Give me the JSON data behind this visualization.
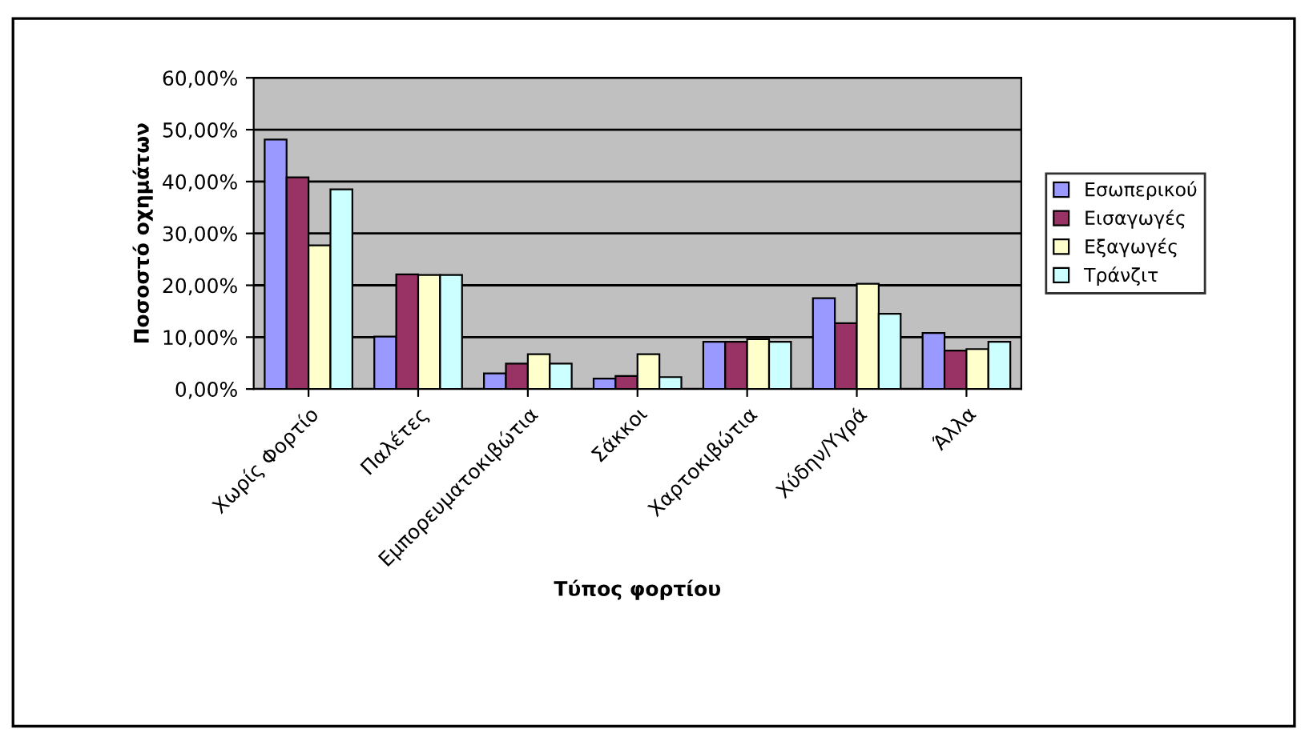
{
  "chart_data": {
    "type": "bar",
    "xlabel": "Τύπος φορτίου",
    "ylabel": "Ποσοστό οχημάτων",
    "categories": [
      "Χωρίς Φορτίο",
      "Παλέτες",
      "Εμπορευματοκιβώτια",
      "Σάκκοι",
      "Χαρτοκιβώτια",
      "Χύδην/Υγρά",
      "Άλλα"
    ],
    "series": [
      {
        "name": "Εσωπερικού",
        "color": "#9999ff",
        "values": [
          48.1,
          10.1,
          3.0,
          2.0,
          9.1,
          17.5,
          10.8
        ]
      },
      {
        "name": "Εισαγωγές",
        "color": "#993366",
        "values": [
          40.8,
          22.1,
          4.9,
          2.5,
          9.1,
          12.7,
          7.4
        ]
      },
      {
        "name": "Εξαγωγές",
        "color": "#ffffcc",
        "values": [
          27.7,
          22.0,
          6.7,
          6.7,
          9.6,
          20.3,
          7.7
        ]
      },
      {
        "name": "Τράνζιτ",
        "color": "#ccffff",
        "values": [
          38.5,
          22.0,
          4.9,
          2.3,
          9.1,
          14.5,
          9.1
        ]
      }
    ],
    "ylim": [
      0,
      60
    ],
    "yticks": [
      {
        "value": 0,
        "label": "0,00%"
      },
      {
        "value": 10,
        "label": "10,00%"
      },
      {
        "value": 20,
        "label": "20,00%"
      },
      {
        "value": 30,
        "label": "30,00%"
      },
      {
        "value": 40,
        "label": "40,00%"
      },
      {
        "value": 50,
        "label": "50,00%"
      },
      {
        "value": 60,
        "label": "60,00%"
      }
    ],
    "grid": "y",
    "legend": "right"
  }
}
